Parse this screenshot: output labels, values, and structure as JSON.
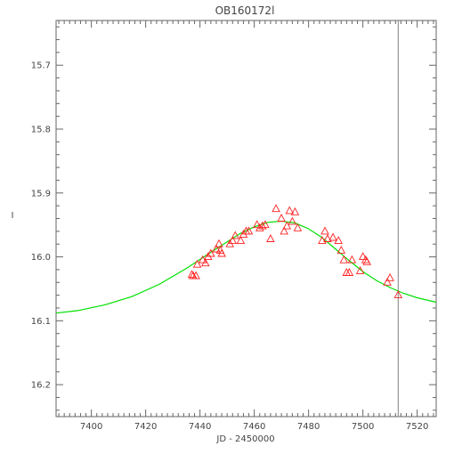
{
  "chart_data": {
    "type": "scatter",
    "title": "OB160172l",
    "xlabel": "JD - 2450000",
    "ylabel": "I",
    "xlim": [
      7387,
      7527
    ],
    "ylim": [
      16.25,
      15.63
    ],
    "y_inverted": true,
    "grid": false,
    "x_ticks": [
      7400,
      7420,
      7440,
      7460,
      7480,
      7500,
      7520
    ],
    "x_tick_labels": [
      "7400",
      "7420",
      "7440",
      "7460",
      "7480",
      "7500",
      "7520"
    ],
    "y_ticks": [
      15.7,
      15.8,
      15.9,
      16.0,
      16.1,
      16.2
    ],
    "y_tick_labels": [
      "15.7",
      "15.8",
      "15.9",
      "16.0",
      "16.1",
      "16.2"
    ],
    "vertical_line": {
      "x": 7513,
      "color": "#808080"
    },
    "model": {
      "kind": "line",
      "color": "#00e000",
      "x": [
        7387,
        7395,
        7405,
        7415,
        7425,
        7435,
        7445,
        7455,
        7460,
        7465,
        7470,
        7475,
        7480,
        7485,
        7490,
        7495,
        7500,
        7505,
        7510,
        7515,
        7520,
        7527
      ],
      "y": [
        16.088,
        16.084,
        16.075,
        16.062,
        16.043,
        16.018,
        15.99,
        15.963,
        15.953,
        15.946,
        15.944,
        15.947,
        15.956,
        15.97,
        15.988,
        16.006,
        16.023,
        16.037,
        16.048,
        16.057,
        16.064,
        16.071
      ]
    },
    "points": {
      "marker": "triangle",
      "color": "#ff2020",
      "x": [
        7437,
        7437.5,
        7438.5,
        7439,
        7441,
        7442,
        7443,
        7444,
        7446,
        7447,
        7447.5,
        7448,
        7451,
        7452,
        7453,
        7455,
        7456,
        7457,
        7458,
        7461,
        7462,
        7463,
        7464,
        7466,
        7468,
        7470,
        7471,
        7472,
        7473,
        7474,
        7475,
        7476,
        7485,
        7486,
        7487,
        7489,
        7491,
        7492,
        7493,
        7494,
        7495,
        7496,
        7499,
        7500,
        7501,
        7501.5,
        7509,
        7510,
        7513
      ],
      "y": [
        16.028,
        16.03,
        16.03,
        16.012,
        16.005,
        16.01,
        16.0,
        15.995,
        15.988,
        15.98,
        15.99,
        15.995,
        15.98,
        15.975,
        15.967,
        15.975,
        15.965,
        15.96,
        15.96,
        15.95,
        15.955,
        15.952,
        15.95,
        15.972,
        15.925,
        15.94,
        15.96,
        15.952,
        15.928,
        15.945,
        15.93,
        15.955,
        15.975,
        15.96,
        15.972,
        15.97,
        15.975,
        15.99,
        16.005,
        16.025,
        16.025,
        16.005,
        16.022,
        16.0,
        16.005,
        16.008,
        16.04,
        16.033,
        16.06
      ]
    }
  }
}
